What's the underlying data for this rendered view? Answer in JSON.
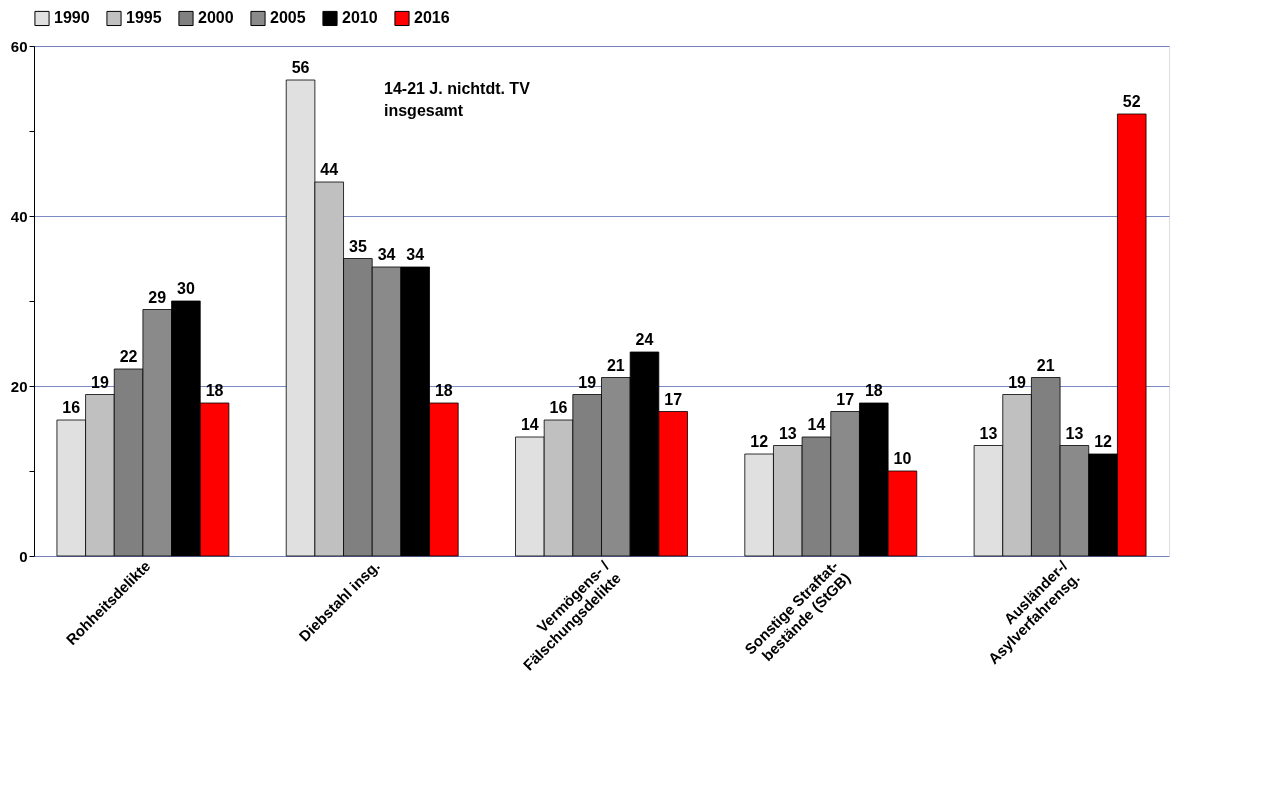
{
  "chart_data": {
    "type": "bar",
    "categories": [
      "Rohheitsdelikte",
      "Diebstahl insg.",
      "Vermögens- /\nFälschungsdelikte",
      "Sonstige Straftat-\nbestände (StGB)",
      "Ausländer-/\nAsylverfahrensg."
    ],
    "series": [
      {
        "name": "1990",
        "color": "#e0e0e0",
        "values": [
          16,
          56,
          14,
          12,
          13
        ]
      },
      {
        "name": "1995",
        "color": "#c0c0c0",
        "values": [
          19,
          44,
          16,
          13,
          19
        ]
      },
      {
        "name": "2000",
        "color": "#808080",
        "values": [
          22,
          35,
          19,
          14,
          21
        ]
      },
      {
        "name": "2005",
        "color": "#8a8a8a",
        "values": [
          29,
          34,
          21,
          17,
          13
        ]
      },
      {
        "name": "2010",
        "color": "#000000",
        "values": [
          30,
          34,
          24,
          18,
          12
        ]
      },
      {
        "name": "2016",
        "color": "#ff0000",
        "values": [
          18,
          18,
          17,
          10,
          52
        ]
      }
    ],
    "ylim": [
      0,
      60
    ],
    "yticks": [
      0,
      {
        "value": 10,
        "label": null
      },
      20,
      {
        "value": 30,
        "label": null
      },
      40,
      {
        "value": 50,
        "label": null
      },
      60
    ],
    "grid": "y",
    "legend": "top",
    "data_labels": true,
    "annotations": [
      "14-21 J. nichtdt. TV\ninsgesamt"
    ]
  }
}
